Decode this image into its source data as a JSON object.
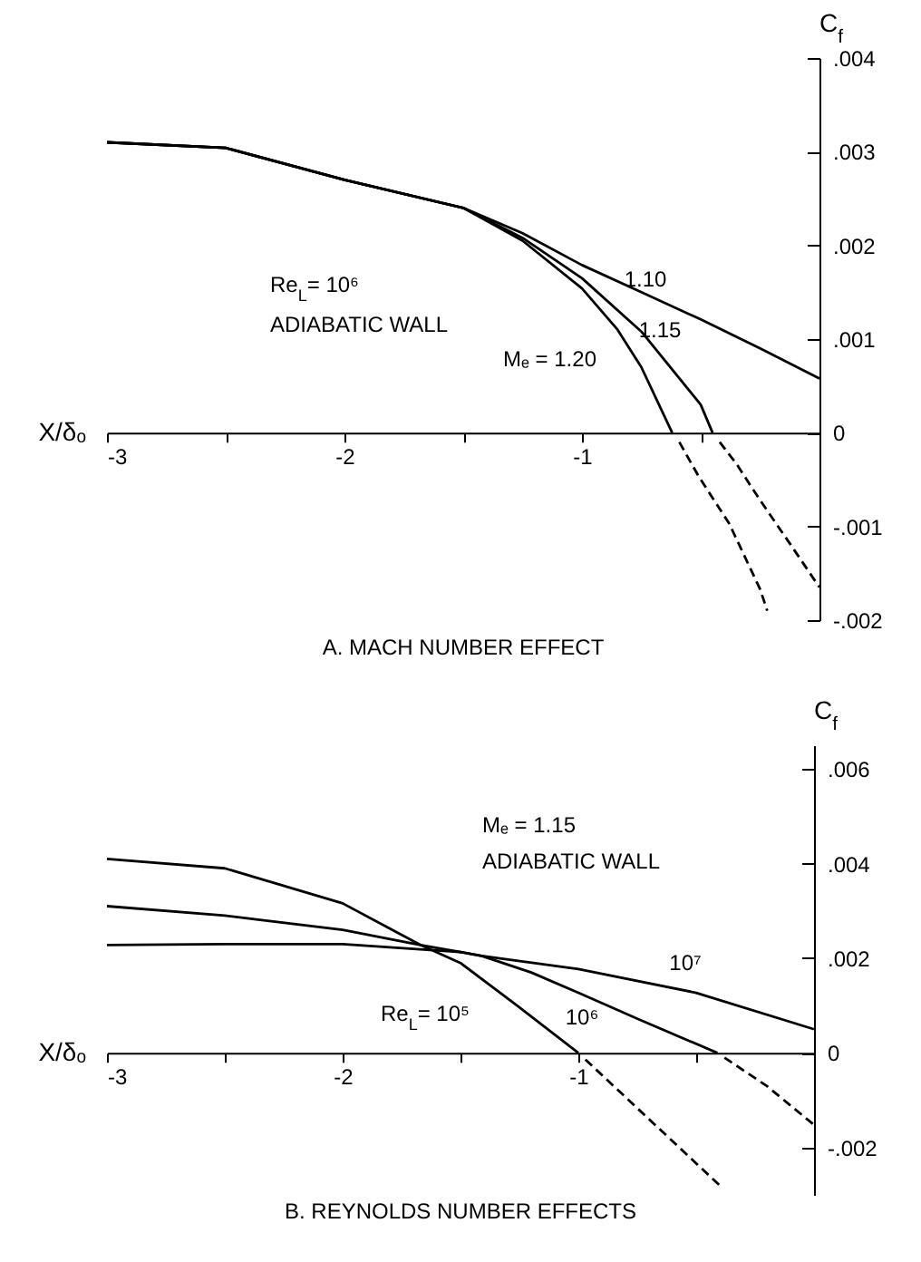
{
  "chart_data": [
    {
      "type": "line",
      "title": "A.  MACH NUMBER EFFECT",
      "xlabel": "X/δₒ",
      "ylabel": "C$_{f}$",
      "xlim": [
        -3,
        0
      ],
      "xticks": [
        -3,
        {
          "value": -2.5,
          "label": null
        },
        -2,
        {
          "value": -1.5,
          "label": null
        },
        -1,
        {
          "value": -0.5,
          "label": null
        }
      ],
      "ylim": [
        -0.002,
        0.004
      ],
      "yticks": [
        {
          "value": 0.004,
          "label": ".004"
        },
        {
          "value": 0.003,
          "label": ".003"
        },
        {
          "value": 0.002,
          "label": ".002"
        },
        {
          "value": 0.001,
          "label": ".001"
        },
        0,
        {
          "value": -0.001,
          "label": "-.001"
        },
        {
          "value": -0.002,
          "label": "-.002"
        }
      ],
      "series": [
        {
          "name": "1.10",
          "color": "#000000",
          "line_style": "solid",
          "x": [
            -3,
            -2.5,
            -2,
            -1.5,
            -1.25,
            -1,
            -0.75,
            -0.5,
            -0.25,
            0
          ],
          "values": [
            0.0031,
            0.00304,
            0.0027,
            0.0024,
            0.00213,
            0.00179,
            0.0015,
            0.00121,
            0.0009,
            0.00058
          ]
        },
        {
          "name": "1.15",
          "color": "#000000",
          "line_style": "solid",
          "x": [
            -3,
            -2.5,
            -2,
            -1.5,
            -1.25,
            -1,
            -0.75,
            -0.5,
            -0.45
          ],
          "values": [
            0.0031,
            0.00304,
            0.0027,
            0.0024,
            0.00208,
            0.00165,
            0.00108,
            0.0003,
            0
          ]
        },
        {
          "color": "#000000",
          "line_style": "dashed",
          "x": [
            -0.42,
            -0.35,
            -0.25,
            -0.12,
            0
          ],
          "values": [
            -0.0001,
            -0.00033,
            -0.00072,
            -0.0012,
            -0.00165
          ]
        },
        {
          "name": "Mₑ = 1.20",
          "color": "#000000",
          "line_style": "solid",
          "x": [
            -3,
            -2.5,
            -2,
            -1.5,
            -1.25,
            -1,
            -0.85,
            -0.75,
            -0.62
          ],
          "values": [
            0.0031,
            0.00304,
            0.0027,
            0.0024,
            0.00205,
            0.00154,
            0.0011,
            0.0007,
            0
          ]
        },
        {
          "color": "#000000",
          "line_style": "dashed",
          "x": [
            -0.59,
            -0.51,
            -0.38,
            -0.25,
            -0.22
          ],
          "values": [
            -0.0001,
            -0.00046,
            -0.00097,
            -0.00167,
            -0.0019
          ]
        }
      ],
      "annotations": [
        "Re$_{L}$= 10⁶",
        "ADIABATIC WALL"
      ]
    },
    {
      "type": "line",
      "title": "B.  REYNOLDS NUMBER EFFECTS",
      "xlabel": "X/δₒ",
      "ylabel": "C$_{f}$",
      "xlim": [
        -3,
        0
      ],
      "xticks": [
        -3,
        {
          "value": -2.5,
          "label": null
        },
        -2,
        {
          "value": -1.5,
          "label": null
        },
        -1,
        {
          "value": -0.5,
          "label": null
        }
      ],
      "ylim": [
        -0.003,
        0.0065
      ],
      "yticks": [
        {
          "value": 0.006,
          "label": ".006"
        },
        {
          "value": 0.004,
          "label": ".004"
        },
        {
          "value": 0.002,
          "label": ".002"
        },
        0,
        {
          "value": -0.002,
          "label": "-.002"
        }
      ],
      "series": [
        {
          "name": "10⁷",
          "color": "#000000",
          "line_style": "solid",
          "x": [
            -3,
            -2.5,
            -2,
            -1.5,
            -1.41,
            -1,
            -0.5,
            0
          ],
          "values": [
            0.00228,
            0.0023,
            0.0023,
            0.00213,
            0.00205,
            0.00177,
            0.00127,
            0.0005
          ]
        },
        {
          "name": "10⁶",
          "color": "#000000",
          "line_style": "solid",
          "x": [
            -3,
            -2.5,
            -2,
            -1.67,
            -1.41,
            -1.2,
            -1,
            -0.74,
            -0.41
          ],
          "values": [
            0.0031,
            0.0029,
            0.0026,
            0.00228,
            0.00205,
            0.0017,
            0.00127,
            0.0007,
            0
          ]
        },
        {
          "color": "#000000",
          "line_style": "dashed",
          "x": [
            -0.38,
            -0.2,
            0
          ],
          "values": [
            -0.0001,
            -0.0007,
            -0.00152
          ]
        },
        {
          "name": "Re$_{L}$= 10⁵",
          "color": "#000000",
          "line_style": "solid",
          "x": [
            -3,
            -2.5,
            -2,
            -1.67,
            -1.5,
            -1.26,
            -1
          ],
          "values": [
            0.0041,
            0.0039,
            0.00316,
            0.00228,
            0.0019,
            0.001,
            0
          ]
        },
        {
          "color": "#000000",
          "line_style": "dashed",
          "x": [
            -0.97,
            -0.7,
            -0.4
          ],
          "values": [
            -0.00014,
            -0.0014,
            -0.0028
          ]
        }
      ],
      "annotations": [
        "Mₑ = 1.15",
        "ADIABATIC WALL"
      ]
    }
  ]
}
